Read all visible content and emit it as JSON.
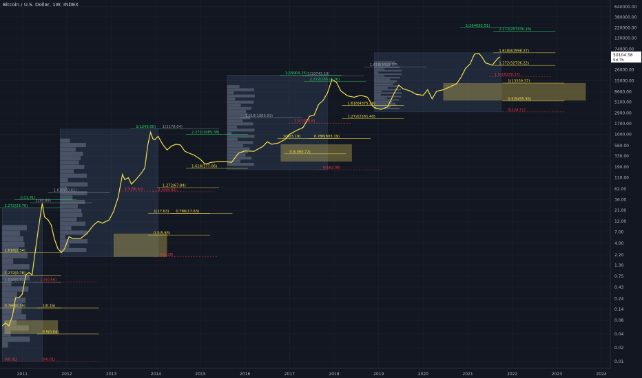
{
  "chart_title": "Bitcoin / U.S. Dollar, 1W, INDEX",
  "current_price": {
    "value": "50104.58",
    "countdown": "5d 7h"
  },
  "colors": {
    "background": "#131722",
    "price_line": "#f4e04d",
    "fib_yellow": "#f4e04d",
    "fib_green": "#2dd36f",
    "fib_red": "#f23645",
    "fib_gray": "#9598a1",
    "box_blue": "#5b7fa8",
    "volume_profile": "#d9c45a"
  },
  "chart_data": {
    "type": "line",
    "scale": "log",
    "title": "Bitcoin / U.S. Dollar, 1W, INDEX",
    "xlabel": "",
    "ylabel": "",
    "x_ticks": [
      "2011",
      "2012",
      "2013",
      "2014",
      "2015",
      "2016",
      "2017",
      "2018",
      "2019",
      "2020",
      "2021",
      "2022",
      "2023",
      "2024"
    ],
    "y_ticks": [
      "640000.00",
      "380000.00",
      "220000.00",
      "130000.00",
      "74000.00",
      "43000.00",
      "26000.00",
      "15000.00",
      "8600.00",
      "5100.00",
      "2900.00",
      "1700.00",
      "1000.00",
      "560.00",
      "330.00",
      "190.00",
      "110.00",
      "62.00",
      "36.00",
      "21.00",
      "12.00",
      "7.00",
      "4.00",
      "2.20",
      "1.30",
      "0.75",
      "0.43",
      "0.24",
      "0.14",
      "0.08",
      "0.04",
      "0.02",
      "0.01"
    ],
    "ylim": [
      0.007,
      900000
    ],
    "xlim": [
      2010.5,
      2024.2
    ],
    "series": [
      {
        "x": [
          2010.55,
          2010.62,
          2010.7,
          2010.78,
          2010.85,
          2010.92,
          2011.0,
          2011.08,
          2011.15,
          2011.22,
          2011.3,
          2011.36,
          2011.42,
          2011.45,
          2011.5,
          2011.58,
          2011.65,
          2011.72,
          2011.8,
          2011.88,
          2011.95,
          2012.05,
          2012.15,
          2012.3,
          2012.45,
          2012.6,
          2012.7,
          2012.8,
          2012.95,
          2013.05,
          2013.15,
          2013.25,
          2013.3,
          2013.38,
          2013.45,
          2013.55,
          2013.65,
          2013.75,
          2013.82,
          2013.88,
          2013.93,
          2013.97,
          2014.05,
          2014.15,
          2014.25,
          2014.35,
          2014.45,
          2014.55,
          2014.65,
          2014.75,
          2014.85,
          2015.0,
          2015.1,
          2015.25,
          2015.4,
          2015.55,
          2015.7,
          2015.85,
          2016.0,
          2016.2,
          2016.4,
          2016.5,
          2016.6,
          2016.75,
          2016.9,
          2017.0,
          2017.15,
          2017.3,
          2017.45,
          2017.55,
          2017.65,
          2017.75,
          2017.85,
          2017.95,
          2018.05,
          2018.15,
          2018.3,
          2018.45,
          2018.6,
          2018.75,
          2018.88,
          2018.95,
          2019.05,
          2019.2,
          2019.35,
          2019.45,
          2019.55,
          2019.7,
          2019.85,
          2020.0,
          2020.1,
          2020.2,
          2020.3,
          2020.45,
          2020.6,
          2020.75,
          2020.85,
          2020.95,
          2021.05,
          2021.15,
          2021.25,
          2021.32,
          2021.4,
          2021.48,
          2021.55,
          2021.62,
          2021.68,
          2021.72
        ],
        "y": [
          0.06,
          0.07,
          0.06,
          0.1,
          0.25,
          0.25,
          0.3,
          0.8,
          0.9,
          0.8,
          3.0,
          8.0,
          20.0,
          30.0,
          15.0,
          13.0,
          10.0,
          5.0,
          3.0,
          2.5,
          3.0,
          5.5,
          5.0,
          5.0,
          6.5,
          10.0,
          12.0,
          11.0,
          13.0,
          20.0,
          40.0,
          130.0,
          100.0,
          110.0,
          80.0,
          100.0,
          130.0,
          180.0,
          600.0,
          1100.0,
          800.0,
          750.0,
          900.0,
          600.0,
          450.0,
          550.0,
          600.0,
          580.0,
          420.0,
          380.0,
          350.0,
          280.0,
          220.0,
          240.0,
          250.0,
          250.0,
          240.0,
          380.0,
          430.0,
          420.0,
          540.0,
          680.0,
          600.0,
          640.0,
          770.0,
          1000.0,
          1200.0,
          1400.0,
          2500.0,
          2600.0,
          4500.0,
          5500.0,
          8000.0,
          16000.0,
          14000.0,
          9000.0,
          7000.0,
          6500.0,
          7200.0,
          6500.0,
          4000.0,
          3700.0,
          3500.0,
          4000.0,
          8000.0,
          12000.0,
          10000.0,
          9000.0,
          7500.0,
          7200.0,
          9500.0,
          6000.0,
          8800.0,
          9500.0,
          11000.0,
          13000.0,
          18000.0,
          28000.0,
          35000.0,
          58000.0,
          60000.0,
          50000.0,
          37000.0,
          35000.0,
          33000.0,
          40000.0,
          47000.0,
          50104.58
        ]
      }
    ]
  },
  "fib_labels": [
    {
      "text": "1(264092.51)",
      "color": "green",
      "x": 2020.95,
      "y": 220000
    },
    {
      "text": "2.272(207430.16)",
      "color": "green",
      "x": 2021.7,
      "y": 185000
    },
    {
      "text": "1.618(61998.27)",
      "color": "yellow",
      "x": 2021.7,
      "y": 62000
    },
    {
      "text": "1.272(32726.22)",
      "color": "yellow",
      "x": 2021.7,
      "y": 32700
    },
    {
      "text": "1.5(18239.37)",
      "color": "red",
      "x": 2021.6,
      "y": 18500
    },
    {
      "text": "1(13339.37)",
      "color": "yellow",
      "x": 2021.9,
      "y": 13300
    },
    {
      "text": "0.5(5455.93)",
      "color": "yellow",
      "x": 2021.9,
      "y": 5400
    },
    {
      "text": "0(124.51)",
      "color": "red",
      "x": 2021.9,
      "y": 3100
    },
    {
      "text": "1(19904.25)",
      "color": "green",
      "x": 2016.9,
      "y": 20000
    },
    {
      "text": "1(19743.18)",
      "color": "gray",
      "x": 2017.4,
      "y": 19000
    },
    {
      "text": "2.272(16518.76)",
      "color": "green",
      "x": 2017.45,
      "y": 14500
    },
    {
      "text": "1.618(3018.37)",
      "color": "gray",
      "x": 2018.8,
      "y": 30000
    },
    {
      "text": "1.618(4375.29)",
      "color": "yellow",
      "x": 2018.3,
      "y": 4300
    },
    {
      "text": "1.272(2161.40)",
      "color": "yellow",
      "x": 2018.3,
      "y": 2200
    },
    {
      "text": "1.618(1889.99)",
      "color": "gray",
      "x": 2016.0,
      "y": 2300
    },
    {
      "text": "1.5(1058.6)",
      "color": "red",
      "x": 2017.1,
      "y": 1750
    },
    {
      "text": "1(803.19)",
      "color": "yellow",
      "x": 2016.85,
      "y": 800
    },
    {
      "text": "0.786(803.19)",
      "color": "yellow",
      "x": 2017.55,
      "y": 800
    },
    {
      "text": "0.5(360.72)",
      "color": "yellow",
      "x": 2017.0,
      "y": 370
    },
    {
      "text": "0(162.00)",
      "color": "red",
      "x": 2017.75,
      "y": 165
    },
    {
      "text": "1(1249.00)",
      "color": "green",
      "x": 2013.55,
      "y": 1300
    },
    {
      "text": "1(1178.04)",
      "color": "gray",
      "x": 2014.15,
      "y": 1300
    },
    {
      "text": "2.272(1085.38)",
      "color": "green",
      "x": 2014.8,
      "y": 1000
    },
    {
      "text": "1.618(177.06)",
      "color": "yellow",
      "x": 2014.8,
      "y": 177
    },
    {
      "text": "1.618(50.61)",
      "color": "gray",
      "x": 2011.7,
      "y": 52
    },
    {
      "text": "1.272(67.84)",
      "color": "yellow",
      "x": 2014.15,
      "y": 67
    },
    {
      "text": "1.5(56.42)",
      "color": "red",
      "x": 2013.3,
      "y": 56
    },
    {
      "text": "1.5(55.42)",
      "color": "red",
      "x": 2014.05,
      "y": 54
    },
    {
      "text": "1(17.63)",
      "color": "yellow",
      "x": 2013.95,
      "y": 18
    },
    {
      "text": "0.786(17.63)",
      "color": "yellow",
      "x": 2014.45,
      "y": 18
    },
    {
      "text": "0.5(5.93)",
      "color": "yellow",
      "x": 2013.95,
      "y": 6
    },
    {
      "text": "0(1.28)",
      "color": "red",
      "x": 2014.1,
      "y": 2.0
    },
    {
      "text": "1(11.91)",
      "color": "green",
      "x": 2010.95,
      "y": 36
    },
    {
      "text": "1(30.95)",
      "color": "gray",
      "x": 2011.3,
      "y": 31
    },
    {
      "text": "2.272(23.70)",
      "color": "green",
      "x": 2010.6,
      "y": 23.7
    },
    {
      "text": "1.618(2.54)",
      "color": "yellow",
      "x": 2010.6,
      "y": 2.5
    },
    {
      "text": "1.272(0.78)",
      "color": "yellow",
      "x": 2010.6,
      "y": 0.78
    },
    {
      "text": "1.618(0.51)",
      "color": "gray",
      "x": 2010.6,
      "y": 0.55
    },
    {
      "text": "1.5(0.56)",
      "color": "red",
      "x": 2011.4,
      "y": 0.56
    },
    {
      "text": "0.786(0.15)",
      "color": "yellow",
      "x": 2010.6,
      "y": 0.15
    },
    {
      "text": "1(0.15)",
      "color": "yellow",
      "x": 2011.45,
      "y": 0.15
    },
    {
      "text": "0.5(0.04)",
      "color": "yellow",
      "x": 2011.45,
      "y": 0.04
    },
    {
      "text": "0(0.01)",
      "color": "red",
      "x": 2010.6,
      "y": 0.01
    },
    {
      "text": "0(0.01)",
      "color": "red",
      "x": 2011.45,
      "y": 0.01
    }
  ]
}
